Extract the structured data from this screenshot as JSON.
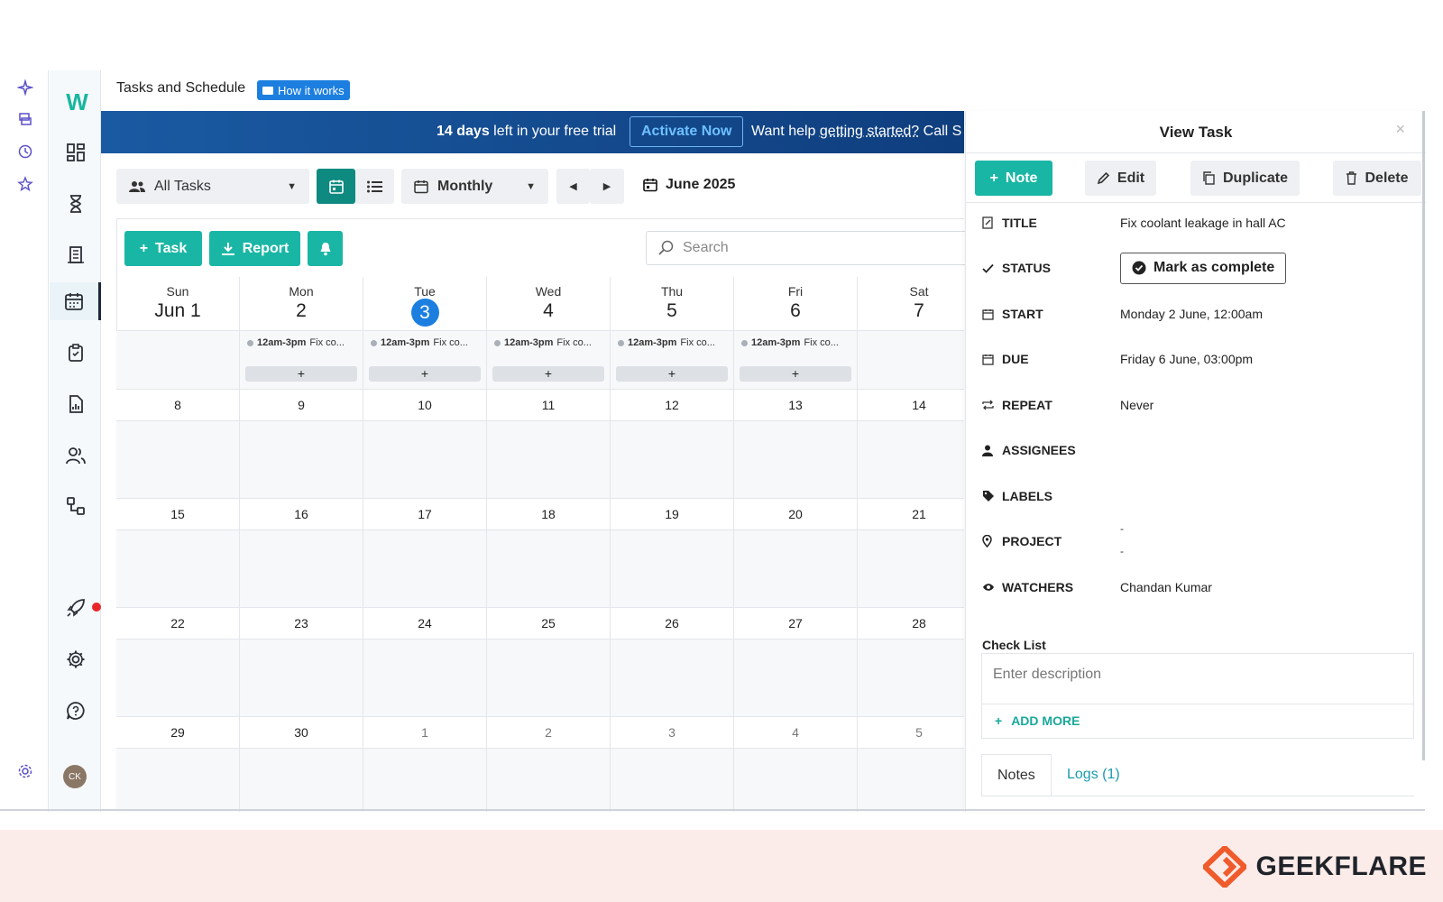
{
  "header": {
    "title": "Tasks and Schedule",
    "how_it_works": "How it works"
  },
  "banner": {
    "trial_days": "14 days",
    "trial_rest": " left in your free trial",
    "activate": "Activate Now",
    "help_prefix": "Want help ",
    "help_link": "getting started?",
    "help_suffix": " Call S"
  },
  "toolbar": {
    "filter": "All Tasks",
    "view_mode": "Monthly",
    "month_label": "June 2025"
  },
  "actions": {
    "task": "Task",
    "report": "Report",
    "search_placeholder": "Search"
  },
  "calendar": {
    "weekday_names": [
      "Sun",
      "Mon",
      "Tue",
      "Wed",
      "Thu",
      "Fri",
      "Sat"
    ],
    "first_row_dates": [
      "Jun 1",
      "2",
      "3",
      "4",
      "5",
      "6",
      "7"
    ],
    "today_index": 2,
    "event_time": "12am-3pm",
    "event_title": "Fix co...",
    "add": "+",
    "weeks": [
      [
        "8",
        "9",
        "10",
        "11",
        "12",
        "13",
        "14"
      ],
      [
        "15",
        "16",
        "17",
        "18",
        "19",
        "20",
        "21"
      ],
      [
        "22",
        "23",
        "24",
        "25",
        "26",
        "27",
        "28"
      ],
      [
        "29",
        "30",
        "1",
        "2",
        "3",
        "4",
        "5"
      ]
    ]
  },
  "drawer": {
    "title": "View Task",
    "close": "×",
    "buttons": {
      "note": "Note",
      "edit": "Edit",
      "duplicate": "Duplicate",
      "delete": "Delete"
    },
    "fields": {
      "title_label": "TITLE",
      "title_value": "Fix coolant leakage in hall AC",
      "status_label": "STATUS",
      "status_button": "Mark as complete",
      "start_label": "START",
      "start_value": "Monday 2 June, 12:00am",
      "due_label": "DUE",
      "due_value": "Friday 6 June, 03:00pm",
      "repeat_label": "REPEAT",
      "repeat_value": "Never",
      "assignees_label": "ASSIGNEES",
      "labels_label": "LABELS",
      "project_label": "PROJECT",
      "project_value_1": "-",
      "project_value_2": "-",
      "watchers_label": "WATCHERS",
      "watchers_value": "Chandan Kumar"
    },
    "checklist": {
      "title": "Check List",
      "placeholder": "Enter description",
      "add_more": "ADD MORE"
    },
    "tabs": {
      "notes": "Notes",
      "logs": "Logs (1)"
    }
  },
  "sidebar": {
    "avatar_initials": "CK"
  },
  "footer": {
    "brand": "GEEKFLARE"
  },
  "colors": {
    "accent_teal": "#1ab6a5",
    "today_blue": "#1c7fe0",
    "banner_blue": "#1a5aa2"
  }
}
